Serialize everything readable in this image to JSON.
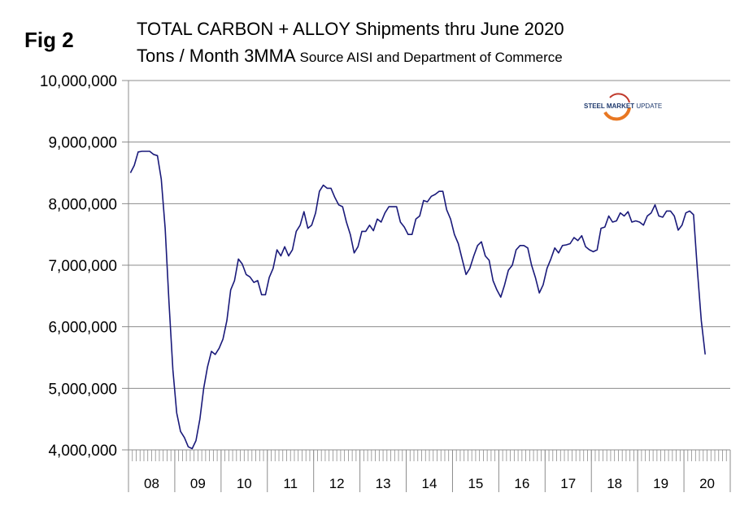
{
  "figure_label": "Fig 2",
  "title_line1": "TOTAL CARBON + ALLOY Shipments thru June 2020",
  "title_line2": "Tons / Month 3MMA",
  "source_note": "Source AISI and Department of Commerce",
  "logo": {
    "name": "STEEL MARKET",
    "suffix": "UPDATE",
    "colors": {
      "arc": "#e87722",
      "text": "#1f3a6e"
    }
  },
  "colors": {
    "line": "#1a1a7a",
    "grid": "#8c8c8c",
    "axis": "#8c8c8c"
  },
  "chart_data": {
    "type": "line",
    "title": "TOTAL CARBON + ALLOY Shipments thru June 2020",
    "subtitle": "Tons / Month 3MMA",
    "xlabel": "",
    "ylabel": "",
    "ylim": [
      4000000,
      10000000
    ],
    "yticks": [
      4000000,
      5000000,
      6000000,
      7000000,
      8000000,
      9000000,
      10000000
    ],
    "ytick_labels": [
      "4,000,000",
      "5,000,000",
      "6,000,000",
      "7,000,000",
      "8,000,000",
      "9,000,000",
      "10,000,000"
    ],
    "year_labels": [
      "08",
      "09",
      "10",
      "11",
      "12",
      "13",
      "14",
      "15",
      "16",
      "17",
      "18",
      "19",
      "20"
    ],
    "start": "2008-01",
    "grid": true,
    "series": [
      {
        "name": "Total Carbon + Alloy 3MMA",
        "values": [
          8500000,
          8620000,
          8840000,
          8850000,
          8850000,
          8850000,
          8800000,
          8780000,
          8400000,
          7600000,
          6400000,
          5300000,
          4600000,
          4300000,
          4200000,
          4050000,
          4020000,
          4150000,
          4500000,
          5000000,
          5350000,
          5600000,
          5550000,
          5650000,
          5800000,
          6100000,
          6600000,
          6750000,
          7100000,
          7020000,
          6850000,
          6810000,
          6720000,
          6750000,
          6520000,
          6520000,
          6800000,
          6950000,
          7250000,
          7150000,
          7300000,
          7150000,
          7250000,
          7550000,
          7650000,
          7870000,
          7600000,
          7650000,
          7850000,
          8200000,
          8300000,
          8250000,
          8250000,
          8100000,
          7980000,
          7950000,
          7700000,
          7500000,
          7200000,
          7300000,
          7550000,
          7550000,
          7650000,
          7560000,
          7750000,
          7700000,
          7850000,
          7950000,
          7950000,
          7950000,
          7700000,
          7620000,
          7500000,
          7500000,
          7750000,
          7800000,
          8050000,
          8030000,
          8120000,
          8150000,
          8200000,
          8200000,
          7900000,
          7750000,
          7500000,
          7350000,
          7100000,
          6850000,
          6950000,
          7150000,
          7320000,
          7380000,
          7150000,
          7080000,
          6750000,
          6600000,
          6480000,
          6680000,
          6920000,
          7000000,
          7250000,
          7320000,
          7320000,
          7280000,
          7000000,
          6800000,
          6550000,
          6680000,
          6950000,
          7100000,
          7280000,
          7200000,
          7320000,
          7330000,
          7350000,
          7450000,
          7400000,
          7480000,
          7300000,
          7250000,
          7220000,
          7250000,
          7600000,
          7620000,
          7800000,
          7700000,
          7720000,
          7850000,
          7800000,
          7870000,
          7700000,
          7720000,
          7700000,
          7650000,
          7800000,
          7850000,
          7980000,
          7800000,
          7780000,
          7880000,
          7880000,
          7800000,
          7570000,
          7650000,
          7850000,
          7880000,
          7820000,
          6900000,
          6100000,
          5550000
        ]
      }
    ]
  }
}
